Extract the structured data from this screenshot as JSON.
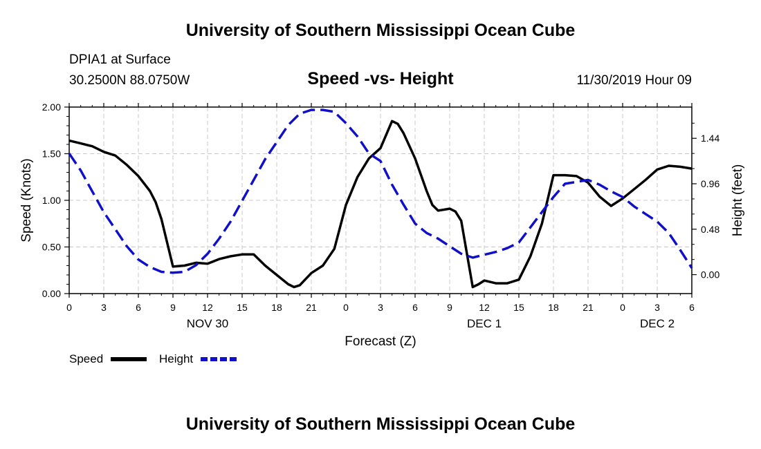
{
  "header": {
    "top_title": "University of Southern Mississippi Ocean Cube",
    "station": "DPIA1 at Surface",
    "coords": "30.2500N 88.0750W",
    "date": "11/30/2019 Hour 09",
    "bottom_title": "University of Southern Mississippi Ocean Cube"
  },
  "chart_data": {
    "type": "line",
    "title": "Speed -vs- Height",
    "xlabel": "Forecast (Z)",
    "ylabel": "Speed (Knots)",
    "y2label": "Height (feet)",
    "x_unit": "hours since 11/30 00Z",
    "xlim": [
      0,
      54
    ],
    "ylim": [
      0,
      2.0
    ],
    "y2lim": [
      -0.2,
      1.77
    ],
    "x_ticks": [
      0,
      3,
      6,
      9,
      12,
      15,
      18,
      21,
      24,
      27,
      30,
      33,
      36,
      39,
      42,
      45,
      48,
      51,
      54
    ],
    "x_tick_labels": [
      "0",
      "3",
      "6",
      "9",
      "12",
      "15",
      "18",
      "21",
      "0",
      "3",
      "6",
      "9",
      "12",
      "15",
      "18",
      "21",
      "0",
      "3",
      "6"
    ],
    "y_ticks": [
      0,
      0.5,
      1.0,
      1.5,
      2.0
    ],
    "y_tick_labels": [
      "0.00",
      "0.50",
      "1.00",
      "1.50",
      "2.00"
    ],
    "y2_ticks": [
      0,
      0.48,
      0.96,
      1.44
    ],
    "y2_tick_labels": [
      "0.00",
      "0.48",
      "0.96",
      "1.44"
    ],
    "day_labels": [
      {
        "x": 12,
        "label": "NOV 30"
      },
      {
        "x": 36,
        "label": "DEC 1"
      },
      {
        "x": 51,
        "label": "DEC 2"
      }
    ],
    "grid": true,
    "series": [
      {
        "name": "Speed",
        "axis": "left",
        "color": "#000000",
        "style": "solid",
        "x": [
          0,
          1,
          2,
          3,
          4,
          5,
          6,
          7,
          7.5,
          8,
          9,
          10,
          11,
          12,
          13,
          14,
          15,
          16,
          17,
          18,
          19,
          19.5,
          20,
          21,
          22,
          23,
          24,
          25,
          26,
          27,
          28,
          28.5,
          29,
          30,
          31,
          31.5,
          32,
          33,
          33.5,
          34,
          35,
          35.5,
          36,
          37,
          38,
          39,
          40,
          41,
          42,
          43,
          44,
          45,
          46,
          47,
          48,
          49,
          50,
          51,
          52,
          53,
          54
        ],
        "values": [
          1.64,
          1.61,
          1.58,
          1.52,
          1.48,
          1.38,
          1.26,
          1.1,
          0.98,
          0.8,
          0.29,
          0.3,
          0.33,
          0.32,
          0.37,
          0.4,
          0.42,
          0.42,
          0.3,
          0.2,
          0.1,
          0.07,
          0.09,
          0.22,
          0.3,
          0.48,
          0.95,
          1.25,
          1.45,
          1.56,
          1.85,
          1.82,
          1.72,
          1.45,
          1.1,
          0.95,
          0.89,
          0.91,
          0.88,
          0.78,
          0.07,
          0.1,
          0.14,
          0.11,
          0.11,
          0.15,
          0.4,
          0.75,
          1.27,
          1.27,
          1.26,
          1.19,
          1.04,
          0.94,
          1.02,
          1.12,
          1.22,
          1.33,
          1.37,
          1.36,
          1.34
        ]
      },
      {
        "name": "Height",
        "axis": "right",
        "color": "#1010c8",
        "style": "dashed",
        "x": [
          0,
          1,
          2,
          3,
          4,
          5,
          6,
          7,
          8,
          9,
          10,
          11,
          12,
          13,
          14,
          15,
          16,
          17,
          18,
          19,
          20,
          21,
          22,
          23,
          24,
          25,
          26,
          27,
          28,
          29,
          30,
          31,
          32,
          33,
          34,
          35,
          36,
          37,
          38,
          39,
          40,
          41,
          42,
          43,
          44,
          45,
          46,
          47,
          48,
          49,
          50,
          51,
          52,
          53,
          54
        ],
        "values": [
          1.28,
          1.1,
          0.88,
          0.66,
          0.48,
          0.3,
          0.16,
          0.08,
          0.03,
          0.02,
          0.03,
          0.1,
          0.22,
          0.38,
          0.56,
          0.78,
          1.0,
          1.22,
          1.4,
          1.58,
          1.7,
          1.74,
          1.74,
          1.72,
          1.6,
          1.46,
          1.28,
          1.2,
          0.95,
          0.74,
          0.54,
          0.44,
          0.38,
          0.3,
          0.22,
          0.18,
          0.21,
          0.24,
          0.28,
          0.34,
          0.5,
          0.66,
          0.82,
          0.96,
          0.98,
          1.0,
          0.95,
          0.88,
          0.82,
          0.72,
          0.64,
          0.56,
          0.44,
          0.26,
          0.07
        ]
      }
    ],
    "legend": {
      "placement": "bottom-left",
      "entries": [
        "Speed",
        "Height"
      ]
    }
  }
}
